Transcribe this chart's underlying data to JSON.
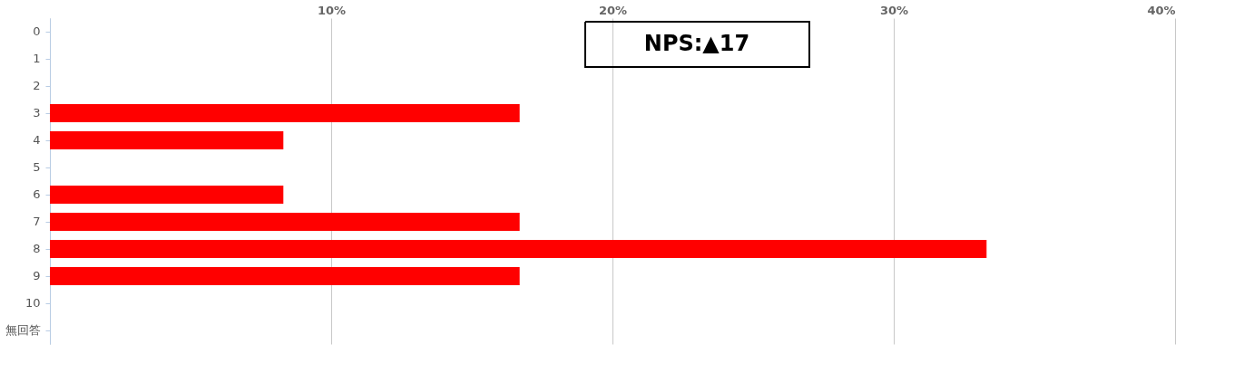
{
  "chart_data": {
    "type": "bar",
    "orientation": "horizontal",
    "categories": [
      "0",
      "1",
      "2",
      "3",
      "4",
      "5",
      "6",
      "7",
      "8",
      "9",
      "10",
      "無回答"
    ],
    "values": [
      0,
      0,
      0,
      16.7,
      8.3,
      0,
      8.3,
      16.7,
      33.3,
      16.7,
      0,
      0
    ],
    "color": "#ff0000",
    "xlim": [
      0,
      40
    ],
    "xticks": [
      {
        "value": 0,
        "label": null
      },
      {
        "value": 10,
        "label": "10%"
      },
      {
        "value": 20,
        "label": "20%"
      },
      {
        "value": 30,
        "label": "30%"
      },
      {
        "value": 40,
        "label": "40%"
      }
    ],
    "grid": "x",
    "annotations": [
      "NPS:▲17"
    ]
  }
}
